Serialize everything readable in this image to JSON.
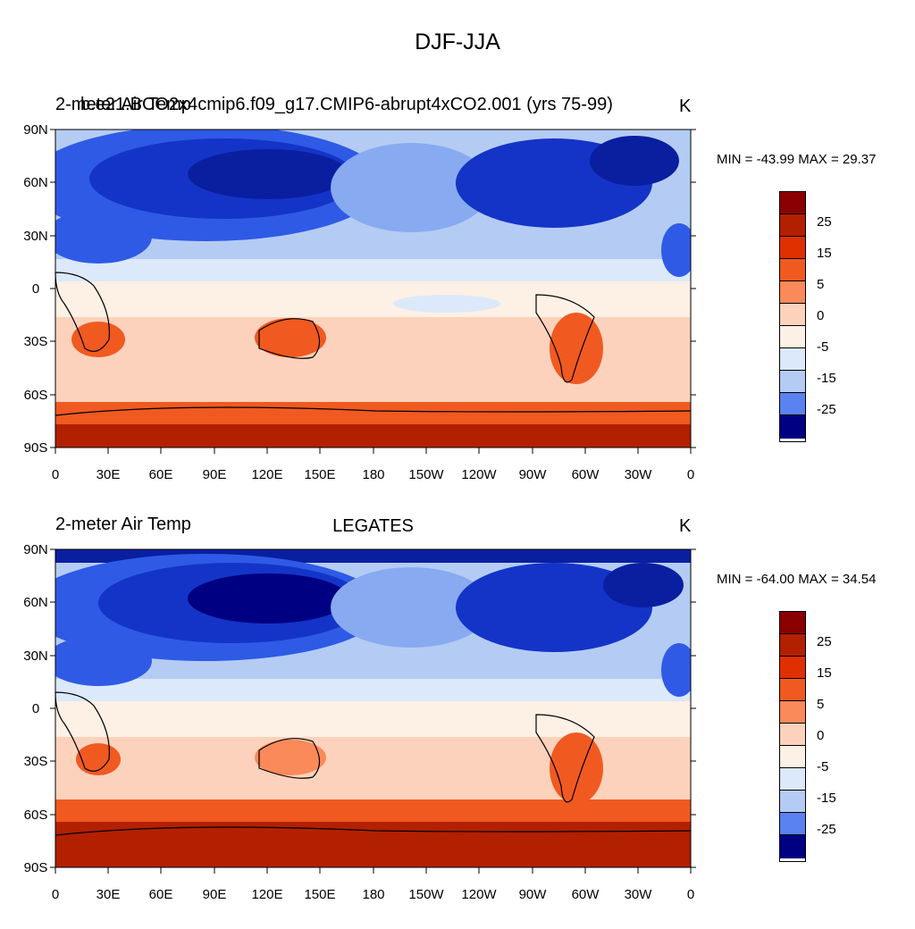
{
  "figure": {
    "title": "DJF-JJA"
  },
  "panels": [
    {
      "left_title": "2-meter Air Temp",
      "center_title": "",
      "overlay_title": "b.e21.BCO2x4cmip6.f09_g17.CMIP6-abrupt4xCO2.001 (yrs 75-99)",
      "unit": "K",
      "minmax": "MIN = -43.99 MAX =  29.37",
      "stats": {
        "min": -43.99,
        "max": 29.37
      }
    },
    {
      "left_title": "2-meter Air Temp",
      "center_title": "LEGATES",
      "overlay_title": "",
      "unit": "K",
      "minmax": "MIN = -64.00 MAX =  34.54",
      "stats": {
        "min": -64.0,
        "max": 34.54
      }
    }
  ],
  "axes": {
    "lat_labels": [
      "90N",
      "60N",
      "30N",
      "0",
      "30S",
      "60S",
      "90S"
    ],
    "lon_labels": [
      "0",
      "30E",
      "60E",
      "90E",
      "120E",
      "150E",
      "180",
      "150W",
      "120W",
      "90W",
      "60W",
      "30W",
      "0"
    ]
  },
  "colorbar": {
    "colors": [
      "#8b0000",
      "#b22000",
      "#e03000",
      "#f05a20",
      "#fa8a5a",
      "#f8b090",
      "#fcd2bc",
      "#fdf0e4",
      "#dbe9fa",
      "#b4ccf4",
      "#88aaf0",
      "#5a82f0",
      "#2e5ae6",
      "#1434c8",
      "#0a1ea0",
      "#000082"
    ],
    "labels": [
      "25",
      "15",
      "5",
      "0",
      "-5",
      "-15",
      "-25"
    ],
    "label_rows": [
      1,
      3,
      5,
      7,
      9,
      11,
      13
    ]
  },
  "colors": {
    "cold": "#0a2ab4",
    "warm": "#c83000",
    "neutral": "#fdf0e4"
  }
}
